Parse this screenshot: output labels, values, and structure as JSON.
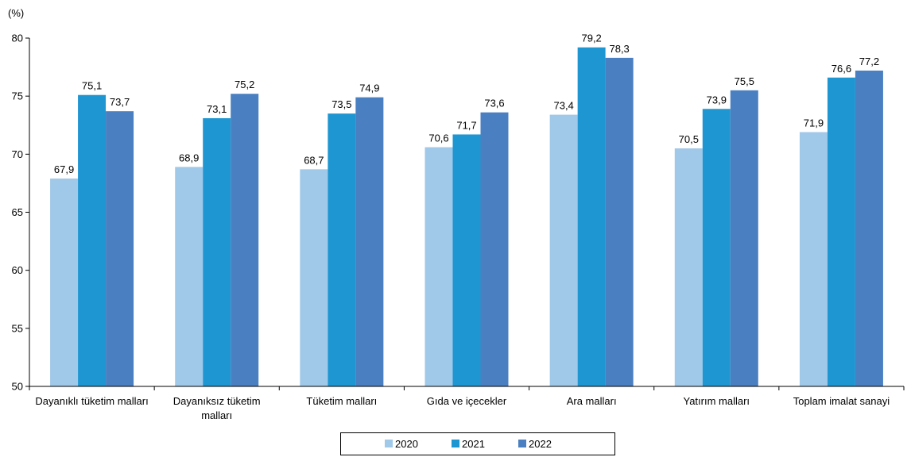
{
  "chart_data": {
    "type": "bar",
    "unit_label": "(%)",
    "categories": [
      [
        "Dayanıklı tüketim malları"
      ],
      [
        "Dayanıksız tüketim",
        "malları"
      ],
      [
        "Tüketim malları"
      ],
      [
        "Gıda ve içecekler"
      ],
      [
        "Ara malları"
      ],
      [
        "Yatırım malları"
      ],
      [
        "Toplam imalat sanayi"
      ]
    ],
    "series": [
      {
        "name": "2020",
        "color": "#a0c8e8",
        "values": [
          67.9,
          68.9,
          68.7,
          70.6,
          73.4,
          70.5,
          71.9
        ],
        "labels": [
          "67,9",
          "68,9",
          "68,7",
          "70,6",
          "73,4",
          "70,5",
          "71,9"
        ]
      },
      {
        "name": "2021",
        "color": "#1e96d2",
        "values": [
          75.1,
          73.1,
          73.5,
          71.7,
          79.2,
          73.9,
          76.6
        ],
        "labels": [
          "75,1",
          "73,1",
          "73,5",
          "71,7",
          "79,2",
          "73,9",
          "76,6"
        ]
      },
      {
        "name": "2022",
        "color": "#4a7fc1",
        "values": [
          73.7,
          75.2,
          74.9,
          73.6,
          78.3,
          75.5,
          77.2
        ],
        "labels": [
          "73,7",
          "75,2",
          "74,9",
          "73,6",
          "78,3",
          "75,5",
          "77,2"
        ]
      }
    ],
    "ylim": [
      50,
      80
    ],
    "yticks": [
      50,
      55,
      60,
      65,
      70,
      75,
      80
    ],
    "ytick_labels": [
      "50",
      "55",
      "60",
      "65",
      "70",
      "75",
      "80"
    ],
    "grid": false,
    "legend_position": "bottom-center"
  }
}
